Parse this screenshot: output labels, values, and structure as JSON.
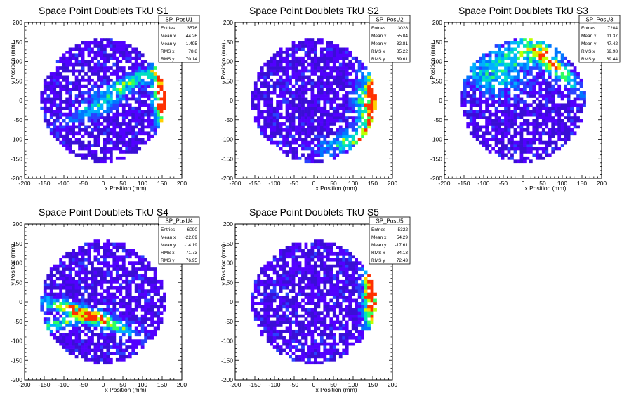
{
  "chart_data": [
    {
      "type": "heatmap",
      "title": "Space Point Doublets TkU S1",
      "xlabel": "x Position (mm)",
      "ylabel": "y Position (mm)",
      "xlim": [
        -200,
        200
      ],
      "ylim": [
        -200,
        200
      ],
      "xticks": [
        "-200",
        "-150",
        "-100",
        "-50",
        "0",
        "50",
        "100",
        "150",
        "200"
      ],
      "yticks": [
        "-200",
        "-150",
        "-100",
        "-50",
        "0",
        "50",
        "100",
        "150",
        "200"
      ],
      "stats": {
        "name": "SP_PosU1",
        "rows": [
          [
            "Entries",
            "3576"
          ],
          [
            "Mean x",
            "44.26"
          ],
          [
            "Mean y",
            "1.495"
          ],
          [
            "RMS x",
            "78.8"
          ],
          [
            "RMS y",
            "70.14"
          ]
        ]
      },
      "hotspots": [
        {
          "x": -10,
          "y": -15,
          "dx": 1,
          "dy": 0.5,
          "w": 14,
          "v": 0.45
        },
        {
          "x": 70,
          "y": 50,
          "dx": 1,
          "dy": 0.45,
          "w": 12,
          "v": 0.55
        },
        {
          "x": 145,
          "y": 30,
          "dx": 0,
          "dy": 1,
          "w": 14,
          "v": 0.8
        },
        {
          "x": 155,
          "y": 15,
          "dx": 0,
          "dy": 1,
          "w": 8,
          "v": 1.0
        }
      ]
    },
    {
      "type": "heatmap",
      "title": "Space Point Doublets TkU S2",
      "xlabel": "x Position (mm)",
      "ylabel": "y Position (mm)",
      "xlim": [
        -200,
        200
      ],
      "ylim": [
        -200,
        200
      ],
      "xticks": [
        "-200",
        "-150",
        "-100",
        "-50",
        "0",
        "50",
        "100",
        "150",
        "200"
      ],
      "yticks": [
        "-200",
        "-150",
        "-100",
        "-50",
        "0",
        "50",
        "100",
        "150",
        "200"
      ],
      "stats": {
        "name": "SP_PosU2",
        "rows": [
          [
            "Entries",
            "3028"
          ],
          [
            "Mean x",
            "55.04"
          ],
          [
            "Mean y",
            "-32.81"
          ],
          [
            "RMS x",
            "85.22"
          ],
          [
            "RMS y",
            "69.61"
          ]
        ]
      },
      "hotspots": [
        {
          "x": 135,
          "y": -10,
          "dx": 0,
          "dy": 1,
          "w": 20,
          "v": 0.65
        },
        {
          "x": 150,
          "y": 10,
          "dx": 0,
          "dy": 1,
          "w": 8,
          "v": 0.95
        },
        {
          "x": 100,
          "y": -100,
          "dx": 1,
          "dy": 0.3,
          "w": 15,
          "v": 0.55
        }
      ]
    },
    {
      "type": "heatmap",
      "title": "Space Point Doublets TkU S3",
      "xlabel": "x Position (mm)",
      "ylabel": "y Position (mm)",
      "xlim": [
        -200,
        200
      ],
      "ylim": [
        -200,
        200
      ],
      "xticks": [
        "-200",
        "-150",
        "-100",
        "-50",
        "0",
        "50",
        "100",
        "150",
        "200"
      ],
      "yticks": [
        "-200",
        "-150",
        "-100",
        "-50",
        "0",
        "50",
        "100",
        "150",
        "200"
      ],
      "stats": {
        "name": "SP_PosU3",
        "rows": [
          [
            "Entries",
            "7204"
          ],
          [
            "Mean x",
            "11.37"
          ],
          [
            "Mean y",
            "47.42"
          ],
          [
            "RMS x",
            "69.98"
          ],
          [
            "RMS y",
            "69.44"
          ]
        ]
      },
      "hotspots": [
        {
          "x": 0,
          "y": 120,
          "dx": 1,
          "dy": 0.1,
          "w": 25,
          "v": 0.55
        },
        {
          "x": 80,
          "y": 90,
          "dx": 0.7,
          "dy": -0.7,
          "w": 14,
          "v": 0.7
        },
        {
          "x": -80,
          "y": 60,
          "dx": 1,
          "dy": -0.2,
          "w": 30,
          "v": 0.4
        }
      ]
    },
    {
      "type": "heatmap",
      "title": "Space Point Doublets TkU S4",
      "xlabel": "x Position (mm)",
      "ylabel": "y Position (mm)",
      "xlim": [
        -200,
        200
      ],
      "ylim": [
        -200,
        200
      ],
      "xticks": [
        "-200",
        "-150",
        "-100",
        "-50",
        "0",
        "50",
        "100",
        "150",
        "200"
      ],
      "yticks": [
        "-200",
        "-150",
        "-100",
        "-50",
        "0",
        "50",
        "100",
        "150",
        "200"
      ],
      "stats": {
        "name": "SP_PosU4",
        "rows": [
          [
            "Entries",
            "6090"
          ],
          [
            "Mean x",
            "-22.09"
          ],
          [
            "Mean y",
            "-14.19"
          ],
          [
            "RMS x",
            "71.73"
          ],
          [
            "RMS y",
            "76.95"
          ]
        ]
      },
      "hotspots": [
        {
          "x": -80,
          "y": -20,
          "dx": 1,
          "dy": -0.3,
          "w": 12,
          "v": 0.6
        },
        {
          "x": 0,
          "y": -50,
          "dx": 1,
          "dy": -0.4,
          "w": 12,
          "v": 0.65
        },
        {
          "x": -130,
          "y": -60,
          "dx": 1,
          "dy": 0.2,
          "w": 10,
          "v": 0.55
        }
      ]
    },
    {
      "type": "heatmap",
      "title": "Space Point Doublets TkU S5",
      "xlabel": "x Position (mm)",
      "ylabel": "y Position (mm)",
      "xlim": [
        -200,
        200
      ],
      "ylim": [
        -200,
        200
      ],
      "xticks": [
        "-200",
        "-150",
        "-100",
        "-50",
        "0",
        "50",
        "100",
        "150",
        "200"
      ],
      "yticks": [
        "-200",
        "-150",
        "-100",
        "-50",
        "0",
        "50",
        "100",
        "150",
        "200"
      ],
      "stats": {
        "name": "SP_PosU5",
        "rows": [
          [
            "Entries",
            "5322"
          ],
          [
            "Mean x",
            "54.29"
          ],
          [
            "Mean y",
            "-17.61"
          ],
          [
            "RMS x",
            "84.13"
          ],
          [
            "RMS y",
            "72.43"
          ]
        ]
      },
      "hotspots": [
        {
          "x": 140,
          "y": 20,
          "dx": 0,
          "dy": 1,
          "w": 12,
          "v": 0.75
        },
        {
          "x": 150,
          "y": 40,
          "dx": 0,
          "dy": 1,
          "w": 6,
          "v": 1.0
        }
      ]
    }
  ],
  "colors": {
    "palette": [
      "#3a0ed6",
      "#5200ff",
      "#2a40ff",
      "#0077ff",
      "#00b0ff",
      "#00e0c0",
      "#30ff60",
      "#c0ff00",
      "#ffd000",
      "#ff3000"
    ],
    "stats_border": "#000000",
    "axis": "#000000"
  }
}
